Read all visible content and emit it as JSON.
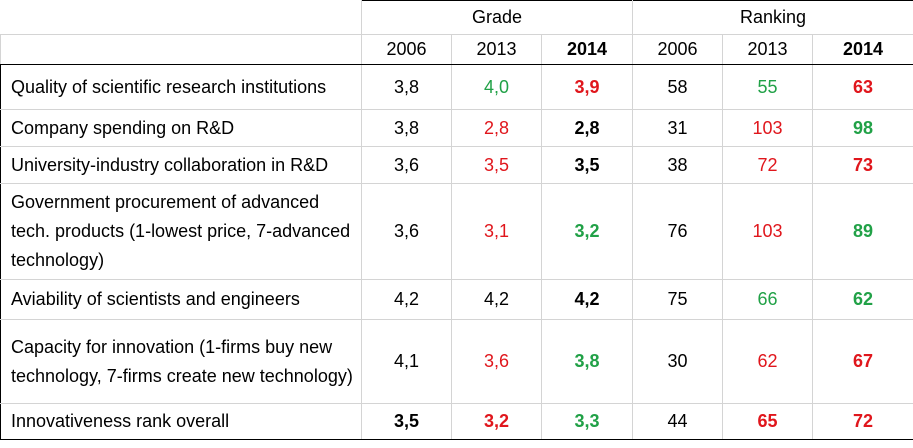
{
  "headers": {
    "grade": "Grade",
    "ranking": "Ranking",
    "years": [
      {
        "label": "2006",
        "bold": false
      },
      {
        "label": "2013",
        "bold": false
      },
      {
        "label": "2014",
        "bold": true
      },
      {
        "label": "2006",
        "bold": false
      },
      {
        "label": "2013",
        "bold": false
      },
      {
        "label": "2014",
        "bold": true
      }
    ]
  },
  "colors": {
    "green": "#21a147",
    "red": "#e0161c",
    "black": "#000000"
  },
  "rows": [
    {
      "label": "Quality of scientific research institutions",
      "cells": [
        {
          "v": "3,8",
          "c": "black",
          "b": false
        },
        {
          "v": "4,0",
          "c": "green",
          "b": false
        },
        {
          "v": "3,9",
          "c": "red",
          "b": true
        },
        {
          "v": "58",
          "c": "black",
          "b": false
        },
        {
          "v": "55",
          "c": "green",
          "b": false
        },
        {
          "v": "63",
          "c": "red",
          "b": true
        }
      ]
    },
    {
      "label": "Company spending on R&D",
      "cells": [
        {
          "v": "3,8",
          "c": "black",
          "b": false
        },
        {
          "v": "2,8",
          "c": "red",
          "b": false
        },
        {
          "v": "2,8",
          "c": "black",
          "b": true
        },
        {
          "v": "31",
          "c": "black",
          "b": false
        },
        {
          "v": "103",
          "c": "red",
          "b": false
        },
        {
          "v": "98",
          "c": "green",
          "b": true
        }
      ]
    },
    {
      "label": "University-industry collaboration in R&D",
      "cells": [
        {
          "v": "3,6",
          "c": "black",
          "b": false
        },
        {
          "v": "3,5",
          "c": "red",
          "b": false
        },
        {
          "v": "3,5",
          "c": "black",
          "b": true
        },
        {
          "v": "38",
          "c": "black",
          "b": false
        },
        {
          "v": "72",
          "c": "red",
          "b": false
        },
        {
          "v": "73",
          "c": "red",
          "b": true
        }
      ]
    },
    {
      "label": "Government procurement of advanced tech. products (1-lowest price, 7-advanced technology)",
      "cells": [
        {
          "v": "3,6",
          "c": "black",
          "b": false
        },
        {
          "v": "3,1",
          "c": "red",
          "b": false
        },
        {
          "v": "3,2",
          "c": "green",
          "b": true
        },
        {
          "v": "76",
          "c": "black",
          "b": false
        },
        {
          "v": "103",
          "c": "red",
          "b": false
        },
        {
          "v": "89",
          "c": "green",
          "b": true
        }
      ]
    },
    {
      "label": "Aviability of scientists and engineers",
      "cells": [
        {
          "v": "4,2",
          "c": "black",
          "b": false
        },
        {
          "v": "4,2",
          "c": "black",
          "b": false
        },
        {
          "v": "4,2",
          "c": "black",
          "b": true
        },
        {
          "v": "75",
          "c": "black",
          "b": false
        },
        {
          "v": "66",
          "c": "green",
          "b": false
        },
        {
          "v": "62",
          "c": "green",
          "b": true
        }
      ]
    },
    {
      "label": "Capacity for innovation (1-firms buy new technology, 7-firms create new technology)",
      "cells": [
        {
          "v": "4,1",
          "c": "black",
          "b": false
        },
        {
          "v": "3,6",
          "c": "red",
          "b": false
        },
        {
          "v": "3,8",
          "c": "green",
          "b": true
        },
        {
          "v": "30",
          "c": "black",
          "b": false
        },
        {
          "v": "62",
          "c": "red",
          "b": false
        },
        {
          "v": "67",
          "c": "red",
          "b": true
        }
      ]
    },
    {
      "label": "Innovativeness rank overall",
      "cells": [
        {
          "v": "3,5",
          "c": "black",
          "b": true
        },
        {
          "v": "3,2",
          "c": "red",
          "b": true
        },
        {
          "v": "3,3",
          "c": "green",
          "b": true
        },
        {
          "v": "44",
          "c": "black",
          "b": false
        },
        {
          "v": "65",
          "c": "red",
          "b": true
        },
        {
          "v": "72",
          "c": "red",
          "b": true
        }
      ]
    }
  ]
}
